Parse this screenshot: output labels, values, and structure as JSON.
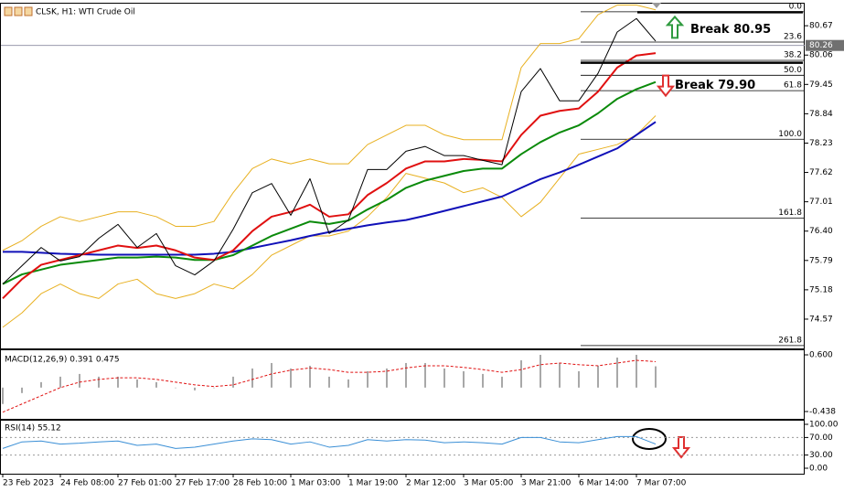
{
  "chart_data": [
    {
      "type": "line",
      "title": "CLSK, H1:  WTI Crude Oil",
      "ylim": [
        73.98,
        81.11
      ],
      "yticks": [
        80.67,
        80.06,
        79.45,
        78.84,
        78.23,
        77.62,
        77.01,
        {
          "value": 76.4,
          "label": "76.40"
        },
        75.79,
        75.18,
        74.57
      ],
      "current_price": 80.26,
      "fib_levels": [
        {
          "label": "0.0",
          "value": 80.96
        },
        {
          "label": "23.6",
          "value": 80.33
        },
        {
          "label": "38.2",
          "value": 79.95
        },
        {
          "label": "50.0",
          "value": 79.64
        },
        {
          "label": "61.8",
          "value": 79.32
        },
        {
          "label": "100.0",
          "value": 78.31
        },
        {
          "label": "161.8",
          "value": 76.67
        },
        {
          "label": "261.8",
          "value": 74.02
        }
      ],
      "annotations": [
        {
          "text": "Break 80.95",
          "value": 80.95,
          "direction": "up",
          "color": "#2e9a3e"
        },
        {
          "text": "Break 79.90",
          "value": 79.9,
          "direction": "down",
          "color": "#e03030"
        }
      ],
      "series": [
        {
          "style": "line",
          "width": 1,
          "color": "#e8b020",
          "values": [
            76.0,
            76.2,
            76.5,
            76.7,
            76.6,
            76.7,
            76.8,
            76.8,
            76.7,
            76.5,
            76.5,
            76.6,
            77.2,
            77.7,
            77.9,
            77.8,
            77.9,
            77.8,
            77.8,
            78.2,
            78.4,
            78.6,
            78.6,
            78.4,
            78.3,
            78.3,
            78.3,
            79.8,
            80.3,
            80.3,
            80.4,
            80.9,
            81.1,
            81.1,
            81.0,
            null,
            null,
            null,
            null,
            null,
            null,
            null
          ]
        },
        {
          "style": "line",
          "width": 1,
          "color": "#e8b020",
          "values": [
            74.4,
            74.7,
            75.1,
            75.3,
            75.1,
            75.0,
            75.3,
            75.4,
            75.1,
            75.0,
            75.1,
            75.3,
            75.2,
            75.5,
            75.9,
            76.1,
            76.3,
            76.3,
            76.4,
            76.7,
            77.1,
            77.6,
            77.5,
            77.4,
            77.2,
            77.3,
            77.1,
            76.7,
            77.0,
            77.5,
            78.0,
            78.1,
            78.2,
            78.4,
            78.8,
            null,
            null,
            null,
            null,
            null,
            null,
            null
          ]
        },
        {
          "style": "line",
          "width": 2,
          "color": "#1010b8",
          "values": [
            75.97,
            75.97,
            75.95,
            75.93,
            75.92,
            75.91,
            75.91,
            75.91,
            75.91,
            75.91,
            75.91,
            75.93,
            75.97,
            76.05,
            76.13,
            76.21,
            76.3,
            76.38,
            76.45,
            76.52,
            76.58,
            76.63,
            76.72,
            76.82,
            76.92,
            77.02,
            77.12,
            77.3,
            77.48,
            77.62,
            77.78,
            77.95,
            78.12,
            78.4,
            78.67,
            null,
            null,
            null,
            null,
            null,
            null,
            null
          ]
        },
        {
          "style": "line",
          "width": 2,
          "color": "#0a8a0a",
          "values": [
            75.3,
            75.5,
            75.6,
            75.7,
            75.75,
            75.8,
            75.85,
            75.85,
            75.87,
            75.85,
            75.8,
            75.8,
            75.9,
            76.1,
            76.3,
            76.45,
            76.6,
            76.55,
            76.62,
            76.85,
            77.05,
            77.3,
            77.45,
            77.55,
            77.65,
            77.7,
            77.7,
            78.0,
            78.25,
            78.45,
            78.6,
            78.85,
            79.15,
            79.35,
            79.5,
            null,
            null,
            null,
            null,
            null,
            null,
            null
          ]
        },
        {
          "style": "line",
          "width": 2,
          "color": "#e01010",
          "values": [
            75.0,
            75.4,
            75.7,
            75.8,
            75.9,
            76.0,
            76.1,
            76.05,
            76.1,
            76.0,
            75.85,
            75.8,
            76.0,
            76.4,
            76.7,
            76.8,
            76.95,
            76.7,
            76.75,
            77.15,
            77.4,
            77.7,
            77.85,
            77.85,
            77.9,
            77.88,
            77.85,
            78.4,
            78.8,
            78.9,
            78.95,
            79.3,
            79.8,
            80.05,
            80.1,
            null,
            null,
            null,
            null,
            null,
            null,
            null
          ]
        },
        {
          "style": "line",
          "width": 1,
          "color": "#000000",
          "values": [
            75.3,
            75.68,
            76.06,
            75.78,
            75.87,
            76.25,
            76.54,
            76.06,
            76.35,
            75.68,
            75.49,
            75.78,
            76.44,
            77.2,
            77.39,
            76.73,
            77.49,
            76.35,
            76.63,
            77.68,
            77.68,
            78.06,
            78.16,
            77.97,
            77.97,
            77.87,
            77.78,
            79.3,
            79.78,
            79.11,
            79.11,
            79.68,
            80.54,
            80.82,
            80.35,
            null,
            null,
            null,
            null,
            null,
            null,
            null
          ]
        }
      ]
    },
    {
      "type": "line",
      "title": "MACD(12,26,9) 0.391 0.475",
      "ylim": [
        -0.572,
        0.684
      ],
      "yticks": [
        {
          "value": 0.6,
          "label": "0.600"
        },
        -0.438
      ],
      "series": [
        {
          "style": "bars",
          "color": "#a8a8a8",
          "values": [
            -0.3,
            -0.1,
            0.1,
            0.2,
            0.25,
            0.2,
            0.2,
            0.15,
            0.1,
            0.0,
            -0.05,
            0.0,
            0.2,
            0.35,
            0.45,
            0.35,
            0.4,
            0.2,
            0.15,
            0.3,
            0.35,
            0.45,
            0.45,
            0.35,
            0.3,
            0.25,
            0.2,
            0.5,
            0.6,
            0.45,
            0.3,
            0.4,
            0.55,
            0.6,
            0.39,
            null,
            null,
            null,
            null,
            null,
            null,
            null
          ]
        },
        {
          "style": "dashed",
          "width": 1,
          "color": "#e01010",
          "values": [
            -0.45,
            -0.3,
            -0.15,
            0.0,
            0.1,
            0.15,
            0.18,
            0.18,
            0.15,
            0.1,
            0.05,
            0.02,
            0.05,
            0.15,
            0.25,
            0.32,
            0.36,
            0.33,
            0.28,
            0.28,
            0.3,
            0.36,
            0.4,
            0.4,
            0.37,
            0.33,
            0.28,
            0.33,
            0.42,
            0.45,
            0.42,
            0.4,
            0.45,
            0.5,
            0.475,
            null,
            null,
            null,
            null,
            null,
            null,
            null
          ]
        }
      ]
    },
    {
      "type": "line",
      "title": "RSI(14) 55.12",
      "ylim": [
        -12.5,
        108.3
      ],
      "yticks": [
        {
          "value": 100,
          "label": "100.00"
        },
        {
          "value": 70,
          "label": "70.00"
        },
        {
          "value": 30,
          "label": "30.00"
        },
        {
          "value": 0,
          "label": "0.00"
        }
      ],
      "levels": [
        70,
        30
      ],
      "categories": [
        "23 Feb 2023",
        null,
        null,
        "24 Feb 08:00",
        null,
        null,
        "27 Feb 01:00",
        null,
        null,
        "27 Feb 17:00",
        null,
        null,
        "28 Feb 10:00",
        null,
        null,
        "1 Mar 03:00",
        null,
        null,
        "1 Mar 19:00",
        null,
        null,
        "2 Mar 12:00",
        null,
        null,
        "3 Mar 05:00",
        null,
        null,
        "3 Mar 21:00",
        null,
        null,
        "6 Mar 14:00",
        null,
        null,
        "7 Mar 07:00",
        null,
        null,
        null,
        null,
        null,
        null,
        null,
        null
      ],
      "series": [
        {
          "style": "line",
          "width": 1,
          "color": "#3a8fd6",
          "values": [
            45,
            60,
            62,
            55,
            57,
            60,
            62,
            52,
            55,
            45,
            48,
            55,
            62,
            67,
            65,
            55,
            60,
            48,
            52,
            65,
            62,
            65,
            64,
            58,
            60,
            58,
            55,
            70,
            70,
            60,
            58,
            65,
            72,
            72,
            55,
            null,
            null,
            null,
            null,
            null,
            null,
            null
          ]
        }
      ]
    }
  ]
}
